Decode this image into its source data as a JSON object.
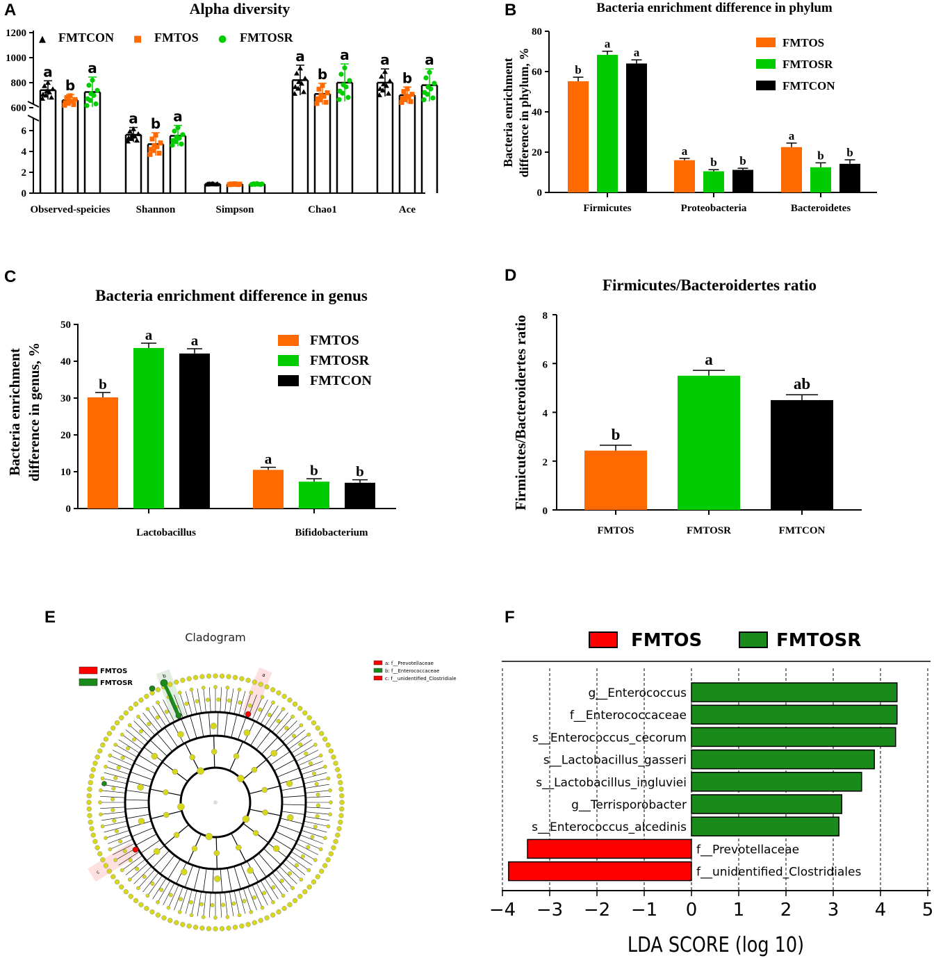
{
  "colors": {
    "FMTOS": "#ff6a00",
    "FMTOSR": "#00cc00",
    "FMTCON": "#000000",
    "lefse_red": "#ff0000",
    "lefse_green": "#1a8a1a",
    "node": "#d7d71c"
  },
  "panel_letters": [
    "A",
    "B",
    "C",
    "D",
    "E",
    "F"
  ],
  "chart_data": [
    {
      "id": "A",
      "type": "bar",
      "title": "Alpha diversity",
      "categories": [
        "Observed-speicies",
        "Shannon",
        "Simpson",
        "Chao1",
        "Ace"
      ],
      "series": [
        {
          "name": "FMTCON",
          "values": [
            740,
            5.6,
            0.88,
            820,
            800
          ],
          "error": [
            75,
            0.7,
            0.05,
            120,
            110
          ]
        },
        {
          "name": "FMTOS",
          "values": [
            660,
            4.7,
            0.86,
            710,
            700
          ],
          "error": [
            45,
            1.1,
            0.05,
            85,
            65
          ]
        },
        {
          "name": "FMTOSR",
          "values": [
            725,
            5.5,
            0.87,
            800,
            780
          ],
          "error": [
            120,
            1.0,
            0.05,
            150,
            130
          ]
        }
      ],
      "letters": [
        [
          "a",
          "b",
          "a"
        ],
        [
          "a",
          "b",
          "a"
        ],
        [
          "",
          "",
          ""
        ],
        [
          "a",
          "b",
          "a"
        ],
        [
          "a",
          "b",
          "a"
        ]
      ],
      "y_lower_ticks": [
        "0",
        "2",
        "4",
        "6"
      ],
      "y_upper_ticks": [
        "600",
        "800",
        "1000",
        "1200"
      ],
      "legend_markers": [
        "▲",
        "■",
        "●"
      ],
      "ylim_lower": [
        0,
        7
      ],
      "ylim_upper": [
        600,
        1200
      ]
    },
    {
      "id": "B",
      "type": "bar",
      "title": "Bacteria enrichment difference in phylum",
      "ylabel_lines": [
        "Bacteria enrichment",
        "difference in phylum, %"
      ],
      "categories": [
        "Firmicutes",
        "Proteobacteria",
        "Bacteroidetes"
      ],
      "series": [
        {
          "name": "FMTOS",
          "values": [
            55.2,
            16.0,
            22.5
          ],
          "error": [
            2.0,
            0.9,
            2.0
          ]
        },
        {
          "name": "FMTOSR",
          "values": [
            68.3,
            10.5,
            12.5
          ],
          "error": [
            1.8,
            0.8,
            2.2
          ]
        },
        {
          "name": "FMTCON",
          "values": [
            64.0,
            11.2,
            14.2
          ],
          "error": [
            1.8,
            0.8,
            2.0
          ]
        }
      ],
      "letters": [
        [
          "b",
          "a",
          "a"
        ],
        [
          "a",
          "b",
          "b"
        ],
        [
          "a",
          "b",
          "b"
        ]
      ],
      "yticks": [
        "0",
        "20",
        "40",
        "60",
        "80"
      ],
      "ylim": [
        0,
        80
      ]
    },
    {
      "id": "C",
      "type": "bar",
      "title": "Bacteria enrichment difference in genus",
      "ylabel_lines": [
        "Bacteria enrichment",
        "difference in genus, %"
      ],
      "categories": [
        "Lactobacillus",
        "Bifidobacterium"
      ],
      "series": [
        {
          "name": "FMTOS",
          "values": [
            30.2,
            10.5
          ],
          "error": [
            1.3,
            0.7
          ]
        },
        {
          "name": "FMTOSR",
          "values": [
            43.6,
            7.3
          ],
          "error": [
            1.3,
            0.8
          ]
        },
        {
          "name": "FMTCON",
          "values": [
            42.1,
            7.0
          ],
          "error": [
            1.3,
            0.8
          ]
        }
      ],
      "letters": [
        [
          "b",
          "a",
          "a"
        ],
        [
          "a",
          "b",
          "b"
        ]
      ],
      "yticks": [
        "0",
        "10",
        "20",
        "30",
        "40",
        "50"
      ],
      "ylim": [
        0,
        50
      ]
    },
    {
      "id": "D",
      "type": "bar",
      "title": "Firmicutes/Bacteroidertes ratio",
      "ylabel": "Firmicutes/Bacteroidertes ratio",
      "categories": [
        "FMTOS",
        "FMTOSR",
        "FMTCON"
      ],
      "values": [
        2.43,
        5.5,
        4.5
      ],
      "error": [
        0.22,
        0.22,
        0.22
      ],
      "letters": [
        "b",
        "a",
        "ab"
      ],
      "yticks": [
        "0",
        "2",
        "4",
        "6",
        "8"
      ],
      "ylim": [
        0,
        8
      ]
    },
    {
      "id": "E",
      "type": "cladogram",
      "title": "Cladogram",
      "legend": [
        "FMTOS",
        "FMTOSR"
      ],
      "key": [
        "a: f__Prevotellaceae",
        "b: f__Enterococcaceae",
        "c: f__unidentified_Clostridiale"
      ],
      "highlight_labels": [
        "a",
        "b",
        "c"
      ]
    },
    {
      "id": "F",
      "type": "bar",
      "orientation": "horizontal",
      "xlabel": "LDA SCORE (log 10)",
      "legend": [
        "FMTOS",
        "FMTOSR"
      ],
      "labels": [
        "g__Enterococcus",
        "f__Enterococcaceae",
        "s__Enterococcus_cecorum",
        "s__Lactobacillus_gasseri",
        "s__Lactobacillus_ingluviei",
        "g__Terrisporobacter",
        "s__Enterococcus_alcedinis",
        "f__Prevotellaceae",
        "f__unidentified_Clostridiales"
      ],
      "values": [
        4.35,
        4.35,
        4.32,
        3.87,
        3.6,
        3.18,
        3.12,
        -3.47,
        -3.87
      ],
      "groups": [
        "FMTOSR",
        "FMTOSR",
        "FMTOSR",
        "FMTOSR",
        "FMTOSR",
        "FMTOSR",
        "FMTOSR",
        "FMTOS",
        "FMTOS"
      ],
      "xticks": [
        "−4",
        "−3",
        "−2",
        "−1",
        "0",
        "1",
        "2",
        "3",
        "4",
        "5"
      ],
      "xlim": [
        -4,
        5
      ]
    }
  ]
}
